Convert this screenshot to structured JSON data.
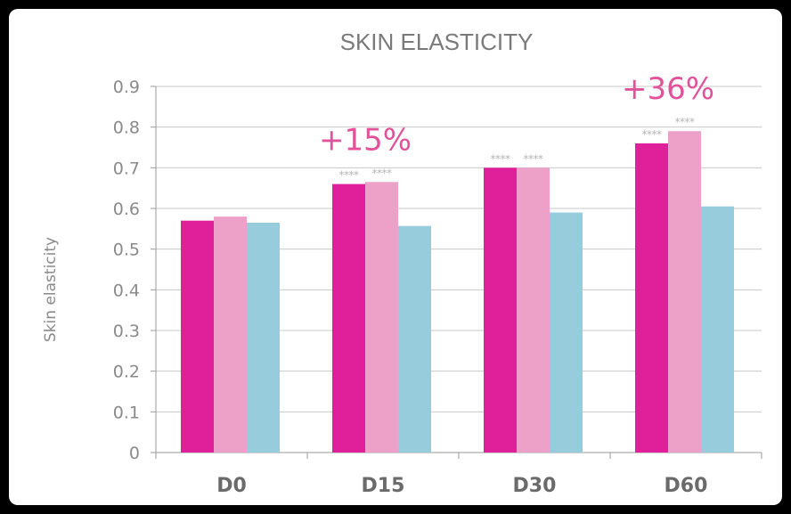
{
  "chart_data": {
    "type": "bar",
    "title": "SKIN ELASTICITY",
    "xlabel": "",
    "ylabel": "Skin elasticity",
    "categories": [
      "D0",
      "D15",
      "D30",
      "D60"
    ],
    "series": [
      {
        "values": [
          0.57,
          0.66,
          0.7,
          0.76
        ],
        "color": "#e0209a"
      },
      {
        "values": [
          0.58,
          0.665,
          0.7,
          0.79
        ],
        "color": "#eda0c8"
      },
      {
        "values": [
          0.565,
          0.557,
          0.59,
          0.605
        ],
        "color": "#96ccdc"
      }
    ],
    "ylim": [
      0,
      0.9
    ],
    "yticks": [
      "0",
      "0.1",
      "0.2",
      "0.3",
      "0.4",
      "0.5",
      "0.6",
      "0.7",
      "0.8",
      "0.9"
    ],
    "grid": true,
    "annotations": [
      {
        "text": "+15%",
        "category": "D15"
      },
      {
        "text": "+36%",
        "category": "D60"
      }
    ],
    "significance": [
      {
        "category": "D15",
        "series": 0,
        "text": "****"
      },
      {
        "category": "D15",
        "series": 1,
        "text": "****"
      },
      {
        "category": "D30",
        "series": 0,
        "text": "****"
      },
      {
        "category": "D30",
        "series": 1,
        "text": "****"
      },
      {
        "category": "D60",
        "series": 0,
        "text": "****"
      },
      {
        "category": "D60",
        "series": 1,
        "text": "****"
      }
    ]
  }
}
